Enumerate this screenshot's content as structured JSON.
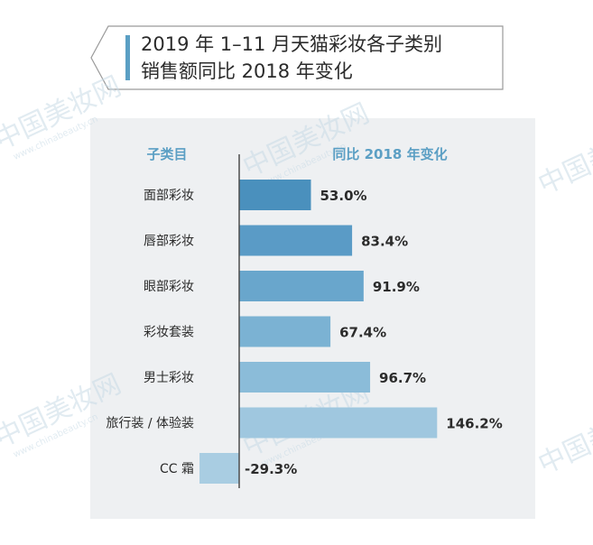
{
  "title": {
    "line1": "2019 年 1–11 月天猫彩妆各子类别",
    "line2": "销售额同比 2018 年变化"
  },
  "watermark": {
    "cn": "中国美妆网",
    "url": "www.chinabeauty.cn"
  },
  "colors": {
    "header": "#5b9fc4",
    "axis": "#4d4d4d",
    "label": "#2b2b2b",
    "bars": [
      "#4a90bd",
      "#5a9bc6",
      "#69a6cc",
      "#7bb2d3",
      "#8bbcd9",
      "#9fc7df",
      "#a9cde2"
    ]
  },
  "chart_data": {
    "type": "bar",
    "orientation": "horizontal",
    "header_left": "子类目",
    "header_right": "同比 2018 年变化",
    "categories": [
      "面部彩妆",
      "唇部彩妆",
      "眼部彩妆",
      "彩妆套装",
      "男士彩妆",
      "旅行装 / 体验装",
      "CC 霜"
    ],
    "values": [
      53.0,
      83.4,
      91.9,
      67.4,
      96.7,
      146.2,
      -29.3
    ],
    "value_labels": [
      "53.0%",
      "83.4%",
      "91.9%",
      "67.4%",
      "96.7%",
      "146.2%",
      "-29.3%"
    ],
    "xlim": [
      -30,
      150
    ],
    "grid": false,
    "legend": "none"
  }
}
